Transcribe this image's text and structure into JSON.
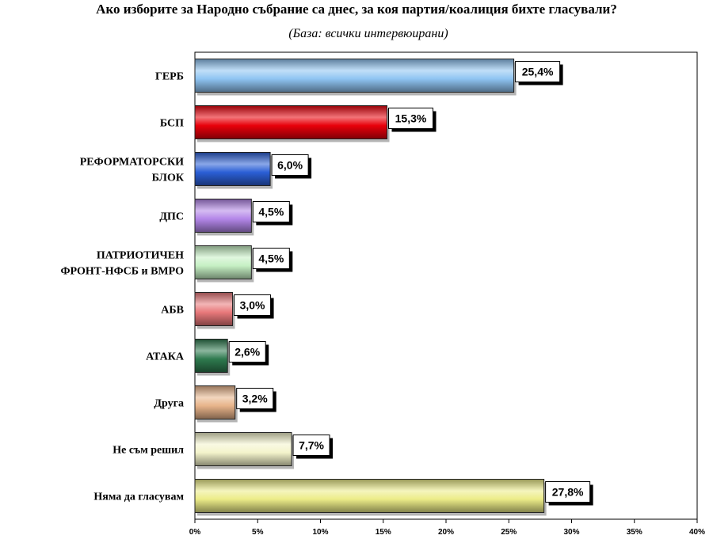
{
  "title": "Ако изборите за Народно събрание са днес, за коя партия/коалиция бихте гласували?",
  "subtitle": "(База: всички интервюирани)",
  "chart_data": {
    "type": "bar",
    "orientation": "horizontal",
    "categories": [
      [
        "ГЕРБ"
      ],
      [
        "БСП"
      ],
      [
        "РЕФОРМАТОРСКИ",
        "БЛОК"
      ],
      [
        "ДПС"
      ],
      [
        "ПАТРИОТИЧЕН",
        "ФРОНТ-НФСБ и ВМРО"
      ],
      [
        "АБВ"
      ],
      [
        "АТАКА"
      ],
      [
        "Друга"
      ],
      [
        "Не съм решил"
      ],
      [
        "Няма да гласувам"
      ]
    ],
    "values": [
      25.4,
      15.3,
      6.0,
      4.5,
      4.5,
      3.0,
      2.6,
      3.2,
      7.7,
      27.8
    ],
    "value_labels": [
      "25,4%",
      "15,3%",
      "6,0%",
      "4,5%",
      "4,5%",
      "3,0%",
      "2,6%",
      "3,2%",
      "7,7%",
      "27,8%"
    ],
    "bar_colors": [
      "#8fc4f2",
      "#e8000a",
      "#2b5fd6",
      "#b386e8",
      "#c6f0c4",
      "#e8787a",
      "#2e7a4e",
      "#e8b48a",
      "#f4f4cc",
      "#ecec88"
    ],
    "x_ticks": [
      "0%",
      "5%",
      "10%",
      "15%",
      "20%",
      "25%",
      "30%",
      "35%",
      "40%"
    ],
    "xlim": [
      0,
      40
    ],
    "grid": false,
    "legend": "none"
  }
}
